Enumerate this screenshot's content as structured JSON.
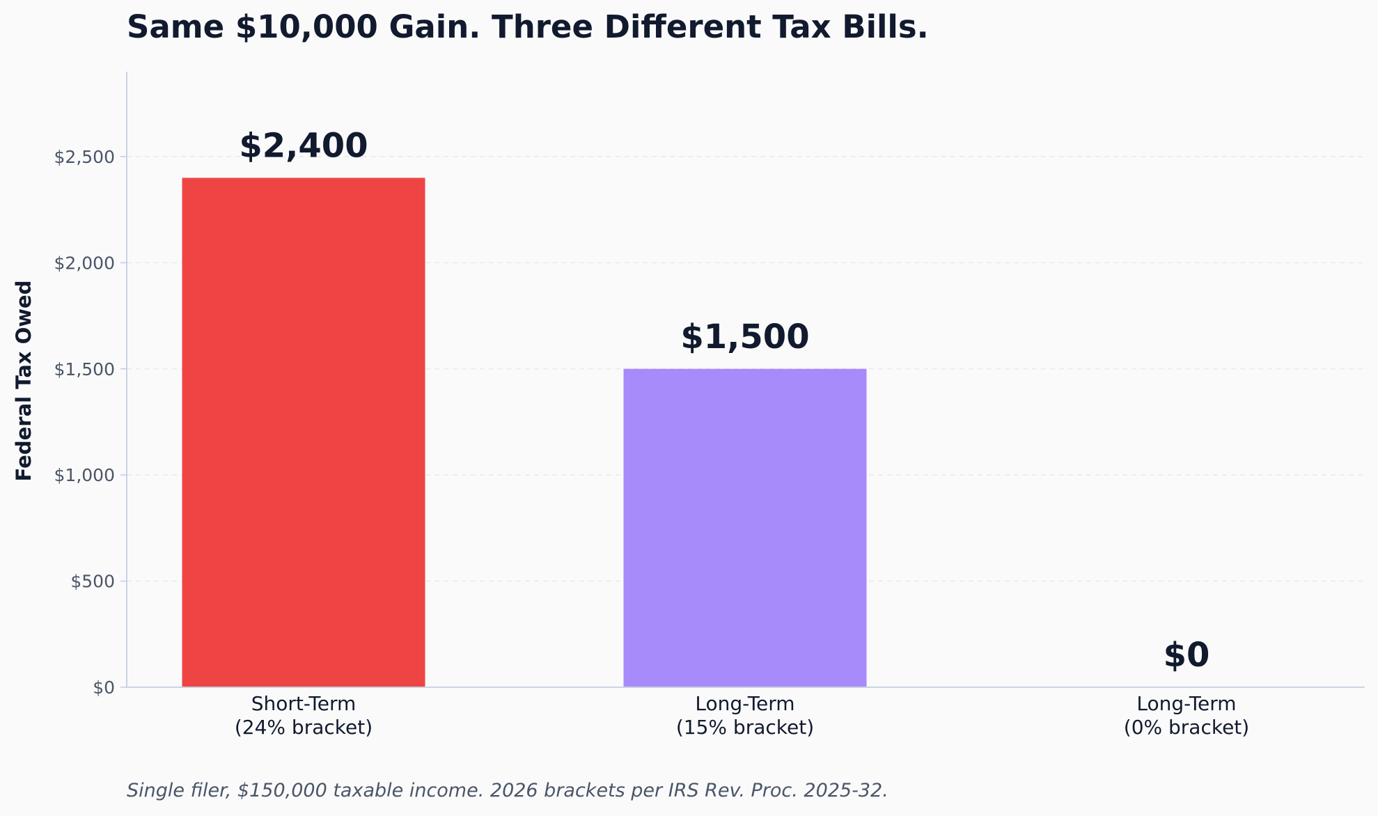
{
  "chart_data": {
    "type": "bar",
    "title": "Same $10,000 Gain. Three Different Tax Bills.",
    "ylabel": "Federal Tax Owed",
    "xlabel": "",
    "categories": [
      [
        "Short-Term",
        "(24% bracket)"
      ],
      [
        "Long-Term",
        "(15% bracket)"
      ],
      [
        "Long-Term",
        "(0% bracket)"
      ]
    ],
    "values": [
      2400,
      1500,
      0
    ],
    "value_labels": [
      "$2,400",
      "$1,500",
      "$0"
    ],
    "bar_colors": [
      "#ef4444",
      "#a78bfa",
      "#a78bfa"
    ],
    "ylim": [
      0,
      2900
    ],
    "yticks": [
      0,
      500,
      1000,
      1500,
      2000,
      2500
    ],
    "ytick_labels": [
      "$0",
      "$500",
      "$1,000",
      "$1,500",
      "$2,000",
      "$2,500"
    ],
    "grid": "horizontal-dashed",
    "legend": "none",
    "footnote": "Single filer, $150,000 taxable income. 2026 brackets per IRS Rev. Proc. 2025-32."
  },
  "colors": {
    "background": "#fafafa",
    "text": "#111a2e",
    "muted": "#4a5568",
    "axis": "#c5cfe0",
    "grid": "#e5e7eb"
  }
}
